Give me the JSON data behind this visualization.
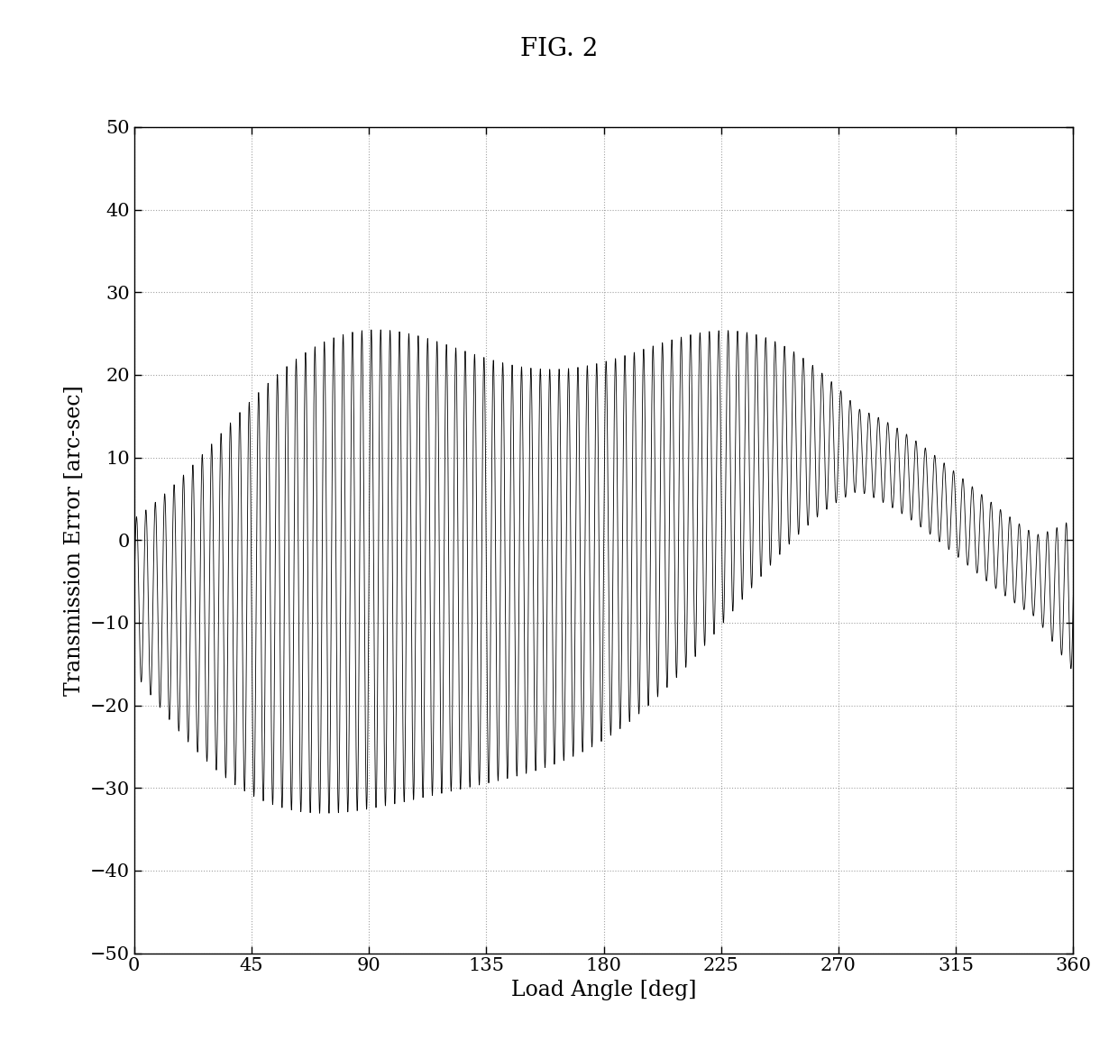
{
  "title": "FIG. 2",
  "xlabel": "Load Angle [deg]",
  "ylabel": "Transmission Error [arc-sec]",
  "xlim": [
    0,
    360
  ],
  "ylim": [
    -50,
    50
  ],
  "xticks": [
    0,
    45,
    90,
    135,
    180,
    225,
    270,
    315,
    360
  ],
  "yticks": [
    -50,
    -40,
    -30,
    -20,
    -10,
    0,
    10,
    20,
    30,
    40,
    50
  ],
  "line_color": "#000000",
  "background_color": "#ffffff",
  "grid_color": "#999999",
  "title_fontsize": 20,
  "label_fontsize": 17,
  "tick_fontsize": 15,
  "line_width": 0.6,
  "num_points": 20000,
  "high_freq_cycles": 100,
  "mean_amp": 8.0,
  "mean_phase": 2.8,
  "mean_amp2": 4.0,
  "mean_phase2": 1.5,
  "env_base": 17.0,
  "env_amp1": 13.0,
  "env_phase1": 0.55,
  "env_amp2": 4.0,
  "env_phase2": 1.8
}
